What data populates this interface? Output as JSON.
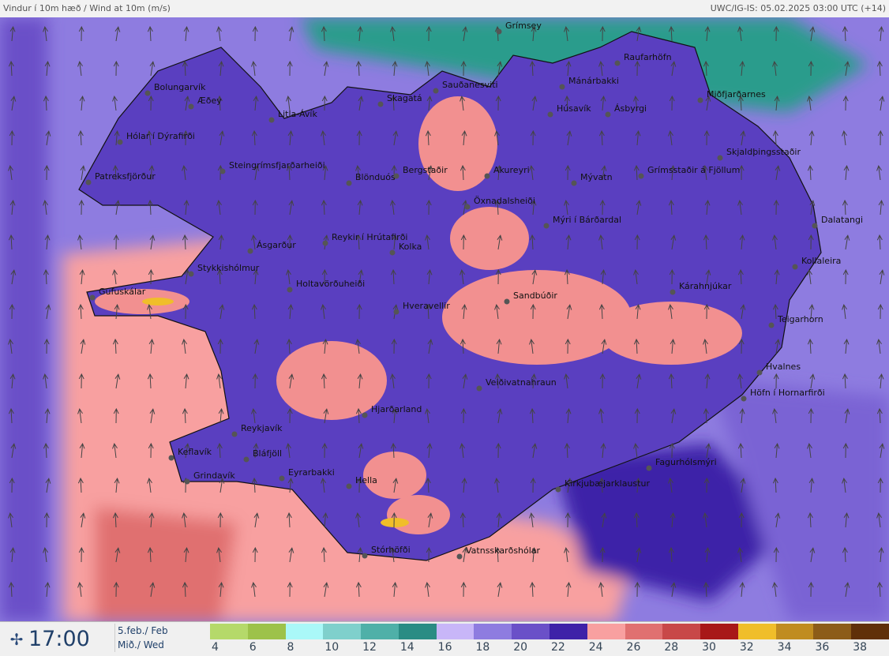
{
  "header": {
    "title": "Vindur í 10m hæð / Wind at 10m (m/s)",
    "source": "UWC/IG-IS: 05.02.2025 03:00 UTC (+14)"
  },
  "footer": {
    "time": "17:00",
    "date_line1": "5.feb./ Feb",
    "date_line2": "Mið./ Wed",
    "icon": "wind-icon"
  },
  "legend": {
    "labels": [
      "4",
      "6",
      "8",
      "10",
      "12",
      "14",
      "16",
      "18",
      "20",
      "22",
      "24",
      "26",
      "28",
      "30",
      "32",
      "34",
      "36",
      "38"
    ],
    "colors": [
      "#b5d96a",
      "#9dc24a",
      "#aaf8f8",
      "#7fd0cc",
      "#4fb0a8",
      "#2a8c84",
      "#c8b6f8",
      "#8e7ce0",
      "#6a50c8",
      "#3e22a8",
      "#f8a0a0",
      "#e07070",
      "#c84848",
      "#a81818",
      "#f0be2a",
      "#c08c20",
      "#8c5c18",
      "#603008"
    ]
  },
  "places": [
    "Grímsey",
    "Raufarhöfn",
    "Bolungarvík",
    "Æðey",
    "Mánárbakki",
    "Sauðanesviti",
    "Skagatá",
    "Húsavík",
    "Ásbyrgi",
    "Miðfjarðarnes",
    "Litla-Ávík",
    "Hólar í Dýrafirði",
    "Steingrímsfjarðarheiði",
    "Blönduós",
    "Bergstaðir",
    "Akureyri",
    "Mývatn",
    "Grímsstaðir á Fjöllum",
    "Skjaldþingsstaðir",
    "Patreksfjörður",
    "Öxnadalsheiði",
    "Mýri í Bárðardal",
    "Dalatangi",
    "Reykir í Hrútafirði",
    "Ásgarður",
    "Kolka",
    "Kollaleira",
    "Stykkishólmur",
    "Holtavörðuheiði",
    "Kárahnjúkar",
    "Gufuskálar",
    "Sandbúðir",
    "Hveravellir",
    "Teigarhorn",
    "Hvalnes",
    "Veiðivatnahraun",
    "Höfn í Hornarfirði",
    "Hjarðarland",
    "Reykjavík",
    "Keflavík",
    "Bláfjöll",
    "Eyrarbakki",
    "Grindavík",
    "Hella",
    "Fagurhólsmýri",
    "Kirkjubæjarklaustur",
    "Stórhöfði",
    "Vatnsskarðshólar"
  ]
}
